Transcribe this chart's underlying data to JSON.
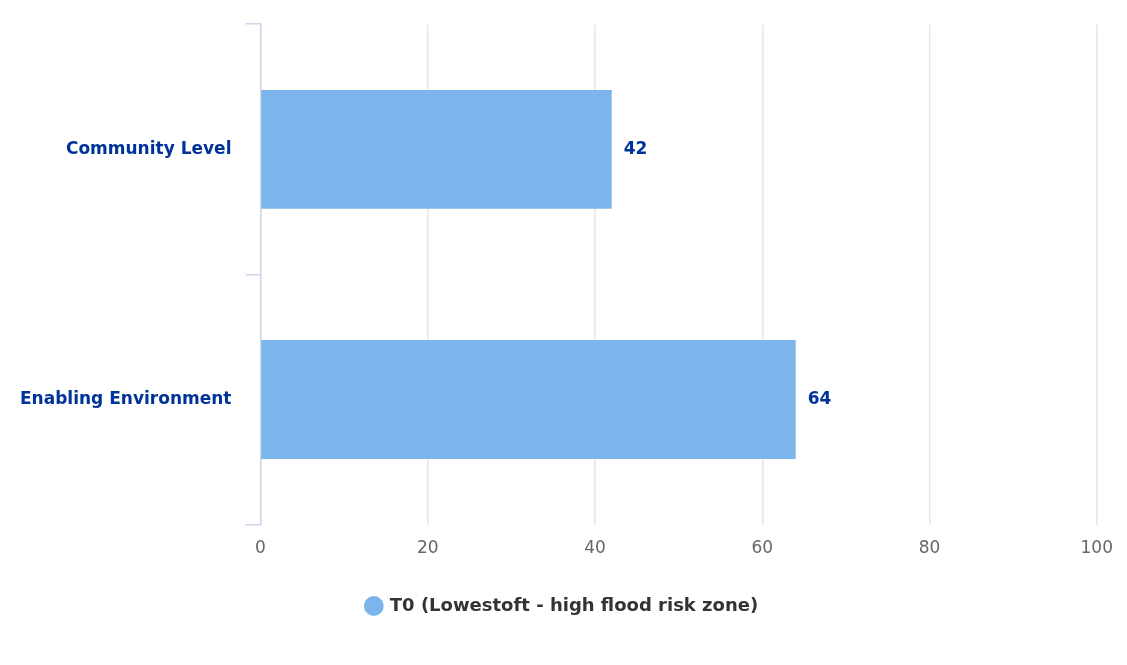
{
  "chart_data": {
    "type": "bar",
    "orientation": "horizontal",
    "categories": [
      "Community Level",
      "Enabling Environment"
    ],
    "series": [
      {
        "name": "T0 (Lowestoft - high flood risk zone)",
        "color": "#7cb5ec",
        "values": [
          42,
          64
        ]
      }
    ],
    "xlim": [
      0,
      100
    ],
    "xticks": [
      0,
      20,
      40,
      60,
      80,
      100
    ],
    "grid": "x",
    "legend": "bottom",
    "data_labels": true
  }
}
